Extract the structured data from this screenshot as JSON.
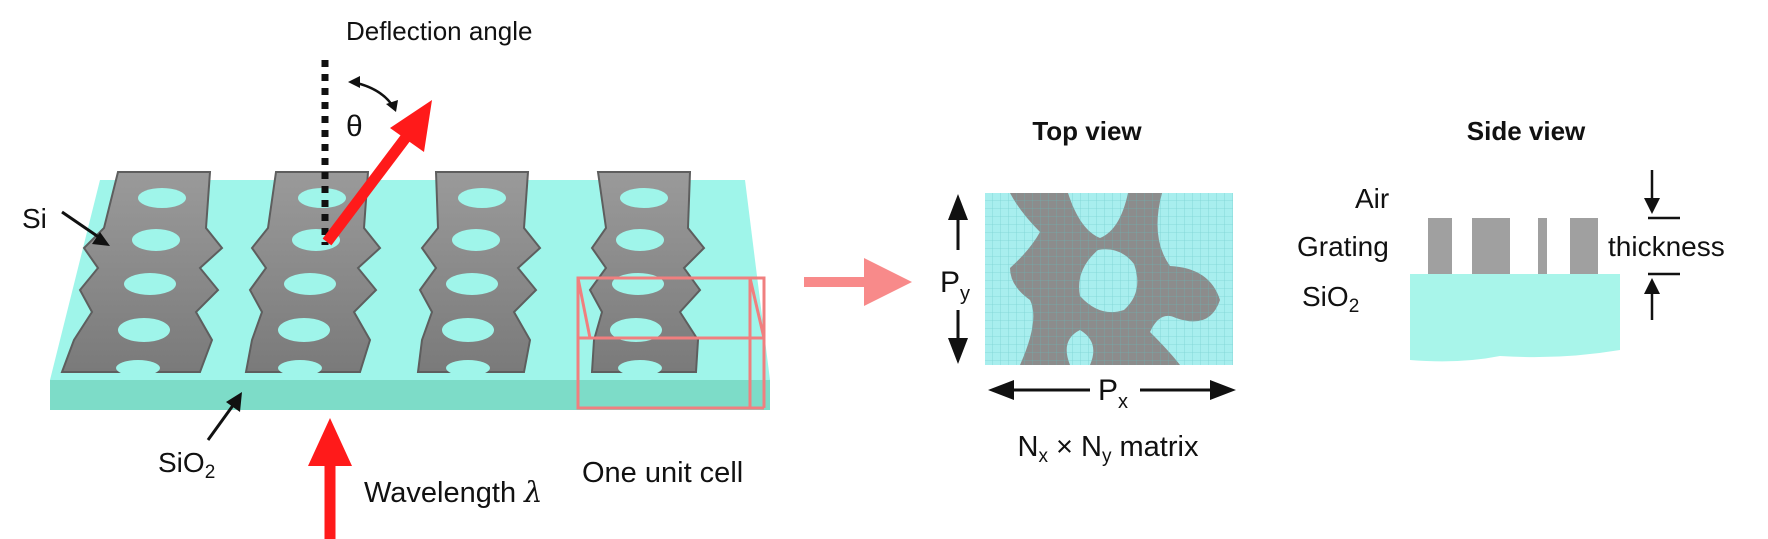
{
  "labels": {
    "deflection_angle": "Deflection angle",
    "theta": "θ",
    "si": "Si",
    "sio2_base": "SiO",
    "sio2_sub": "2",
    "wavelength": "Wavelength ",
    "lambda": "λ",
    "unit_cell": "One unit cell",
    "top_view": "Top view",
    "side_view": "Side view",
    "py_base": "P",
    "py_sub": "y",
    "px_base": "P",
    "px_sub": "x",
    "matrix_n1": "N",
    "matrix_n1_sub": "x",
    "matrix_times": " × N",
    "matrix_n2_sub": "y",
    "matrix_rest": " matrix",
    "air": "Air",
    "grating": "Grating",
    "side_sio2_base": "SiO",
    "side_sio2_sub": "2",
    "thickness": "thickness"
  },
  "colors": {
    "substrate_top": "#9ff5ea",
    "substrate_front": "#7ddcc8",
    "silicon": "#8c8c8c",
    "silicon_dark": "#5e5e5e",
    "arrow_red": "#ff1a1a",
    "arrow_pink": "#f88a8a",
    "unit_cell_box": "#f07f7f",
    "grid_line": "#5fc0c0"
  },
  "icons": [
    "incident-arrow-icon",
    "deflected-arrow-icon",
    "transfer-arrow-icon"
  ]
}
